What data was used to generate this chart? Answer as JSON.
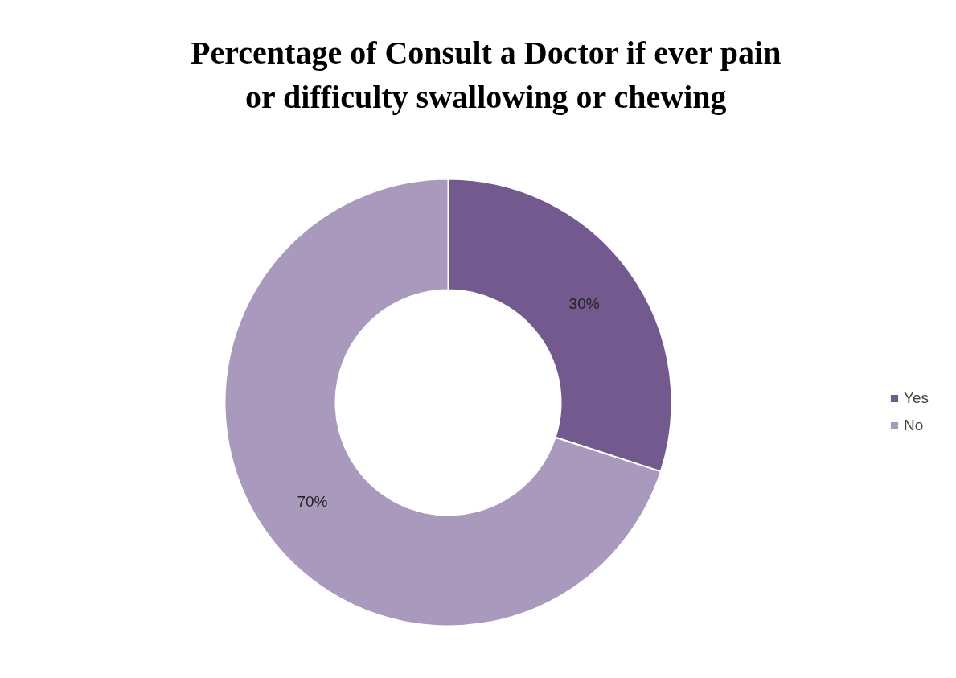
{
  "chart_data": {
    "type": "donut",
    "title": "Percentage of Consult a Doctor if ever pain or difficulty swallowing or chewing",
    "categories": [
      "Yes",
      "No"
    ],
    "values": [
      30,
      70
    ],
    "colors": [
      "#725a8f",
      "#a899bd"
    ],
    "value_labels": [
      "30%",
      "70%"
    ],
    "legend": "right"
  }
}
